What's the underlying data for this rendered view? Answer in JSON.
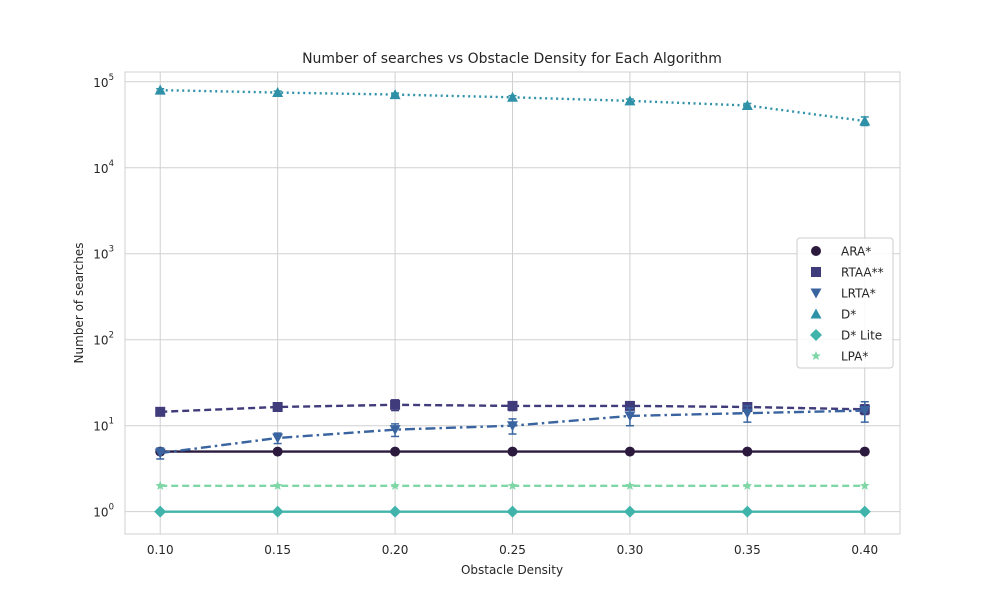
{
  "chart_data": {
    "type": "line",
    "title": "Number of searches vs Obstacle Density for Each Algorithm",
    "xlabel": "Obstacle Density",
    "ylabel": "Number of searches",
    "yscale": "log",
    "x": [
      0.1,
      0.15,
      0.2,
      0.25,
      0.3,
      0.35,
      0.4
    ],
    "x_tick_labels": [
      "0.10",
      "0.15",
      "0.20",
      "0.25",
      "0.30",
      "0.35",
      "0.40"
    ],
    "y_tick_labels": [
      {
        "base": "10",
        "exp": "0"
      },
      {
        "base": "10",
        "exp": "1"
      },
      {
        "base": "10",
        "exp": "2"
      },
      {
        "base": "10",
        "exp": "3"
      },
      {
        "base": "10",
        "exp": "4"
      },
      {
        "base": "10",
        "exp": "5"
      }
    ],
    "xlim": [
      0.085,
      0.415
    ],
    "ylim": [
      0.55,
      130000
    ],
    "grid": true,
    "legend_position": "center-right",
    "series": [
      {
        "name": "ARA*",
        "color": "#2b1a3d",
        "marker": "circle",
        "linestyle": "solid",
        "values": [
          5,
          5,
          5,
          5,
          5,
          5,
          5
        ],
        "errors": [
          0,
          0,
          0,
          0,
          0,
          0,
          0
        ]
      },
      {
        "name": "RTAA**",
        "color": "#403b7a",
        "marker": "square",
        "linestyle": "dashed",
        "values": [
          14.5,
          16.5,
          17.5,
          17,
          17,
          16.5,
          15.5
        ],
        "errors": [
          1.0,
          1.5,
          2.5,
          2.0,
          1.5,
          1.5,
          2.0
        ]
      },
      {
        "name": "LRTA*",
        "color": "#3a64a0",
        "marker": "triangle-down",
        "linestyle": "dashdot",
        "values": [
          4.8,
          7.2,
          9,
          10,
          13,
          14,
          15
        ],
        "errors": [
          0.7,
          1.0,
          1.5,
          2.0,
          3.0,
          3.0,
          4.0
        ]
      },
      {
        "name": "D*",
        "color": "#2e91a8",
        "marker": "triangle-up",
        "linestyle": "dotted",
        "values": [
          80000,
          75000,
          71000,
          66000,
          60000,
          53000,
          35000
        ],
        "errors": [
          3000,
          3000,
          3000,
          3000,
          3000,
          3000,
          4000
        ]
      },
      {
        "name": "D* Lite",
        "color": "#40b3ab",
        "marker": "diamond",
        "linestyle": "solid",
        "values": [
          1,
          1,
          1,
          1,
          1,
          1,
          1
        ],
        "errors": [
          0,
          0,
          0,
          0,
          0,
          0,
          0
        ]
      },
      {
        "name": "LPA*",
        "color": "#7fd6a6",
        "marker": "star",
        "linestyle": "dashed",
        "values": [
          2,
          2,
          2,
          2,
          2,
          2,
          2
        ],
        "errors": [
          0,
          0,
          0,
          0,
          0,
          0,
          0
        ]
      }
    ]
  }
}
